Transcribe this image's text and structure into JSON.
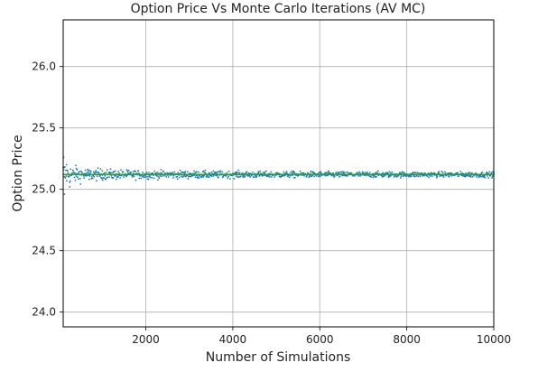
{
  "chart_data": {
    "type": "scatter",
    "title": "Option Price Vs Monte Carlo Iterations (AV MC)",
    "xlabel": "Number of Simulations",
    "ylabel": "Option Price",
    "xlim": [
      100,
      10000
    ],
    "ylim": [
      23.88,
      26.38
    ],
    "xticks": [
      2000,
      4000,
      6000,
      8000,
      10000
    ],
    "xtick_labels": [
      "2000",
      "4000",
      "6000",
      "8000",
      "10000"
    ],
    "yticks": [
      24.0,
      24.5,
      25.0,
      25.5,
      26.0
    ],
    "ytick_labels": [
      "24.0",
      "24.5",
      "25.0",
      "25.5",
      "26.0"
    ],
    "grid": true,
    "series": [
      {
        "color": "#1f77b4",
        "marker": "dot",
        "x_range": [
          100,
          10000
        ],
        "center": 25.12,
        "spread_at_start": 0.13,
        "spread_at_end": 0.012,
        "points_sample": [
          {
            "x": 110,
            "y": 25.26
          },
          {
            "x": 130,
            "y": 24.96
          },
          {
            "x": 180,
            "y": 25.2
          },
          {
            "x": 250,
            "y": 25.02
          },
          {
            "x": 400,
            "y": 25.17
          },
          {
            "x": 700,
            "y": 25.08
          },
          {
            "x": 1000,
            "y": 25.15
          },
          {
            "x": 2000,
            "y": 25.1
          },
          {
            "x": 4000,
            "y": 25.13
          },
          {
            "x": 6000,
            "y": 25.11
          },
          {
            "x": 8000,
            "y": 25.12
          },
          {
            "x": 10000,
            "y": 25.12
          }
        ]
      },
      {
        "color": "#2ca02c",
        "marker": "line",
        "x": [
          100,
          10000
        ],
        "y": [
          25.12,
          25.12
        ]
      }
    ]
  }
}
